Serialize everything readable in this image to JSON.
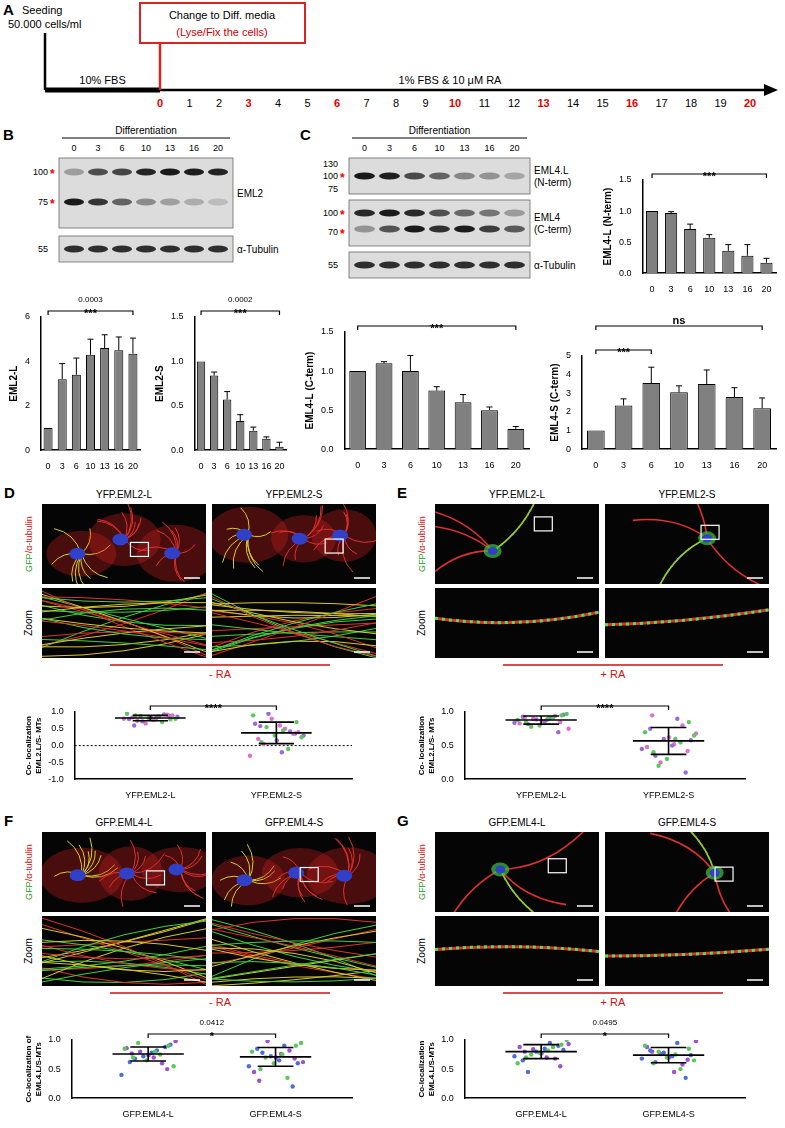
{
  "panels": {
    "A": {
      "letter": "A",
      "seeding": [
        "Seeding",
        "50.000 cells/ml"
      ],
      "box": [
        "Change to Diff. media",
        "(Lyse/Fix the cells)"
      ],
      "phases": [
        "10% FBS",
        "1% FBS & 10 μM RA"
      ],
      "days": [
        0,
        1,
        2,
        3,
        4,
        5,
        6,
        7,
        8,
        9,
        10,
        11,
        12,
        13,
        14,
        15,
        16,
        17,
        18,
        19,
        20
      ],
      "highlight": [
        0,
        3,
        6,
        10,
        13,
        16,
        20
      ]
    },
    "B": {
      "letter": "B",
      "header": "Differentiation",
      "lanes": [
        "0",
        "3",
        "6",
        "10",
        "13",
        "16",
        "20"
      ],
      "blots": [
        {
          "label": [
            "EML2"
          ],
          "markers": [
            {
              "text": "100",
              "mark": "*"
            },
            {
              "text": "75",
              "mark": "*"
            }
          ]
        },
        {
          "label": [
            "α-Tubulin"
          ],
          "markers": [
            {
              "text": "55"
            }
          ]
        }
      ]
    },
    "C": {
      "letter": "C",
      "header": "Differentiation",
      "lanes": [
        "0",
        "3",
        "6",
        "10",
        "13",
        "16",
        "20"
      ],
      "blots": [
        {
          "label": [
            "EML4.L",
            "(N-term)"
          ],
          "markers": [
            {
              "text": "130"
            },
            {
              "text": "100",
              "mark": "*"
            },
            {
              "text": "75"
            }
          ]
        },
        {
          "label": [
            "EML4",
            "(C-term)"
          ],
          "markers": [
            {
              "text": "100",
              "mark": "*"
            },
            {
              "text": "70",
              "mark": "*"
            }
          ]
        },
        {
          "label": [
            "α-Tubulin"
          ],
          "markers": [
            {
              "text": "55"
            }
          ]
        }
      ]
    },
    "D": {
      "letter": "D",
      "labels": [
        "YFP.EML2-L",
        "YFP.EML2-S"
      ],
      "stain": [
        "GFP",
        "/α-tubulin"
      ],
      "zoom": "Zoom",
      "condition": "- RA"
    },
    "E": {
      "letter": "E",
      "labels": [
        "YFP.EML2-L",
        "YFP.EML2-S"
      ],
      "stain": [
        "GFP",
        "/α-tubulin"
      ],
      "zoom": "Zoom",
      "condition": "+ RA"
    },
    "F": {
      "letter": "F",
      "labels": [
        "GFP.EML4-L",
        "GFP.EML4-S"
      ],
      "stain": [
        "GFP",
        "/α-tubulin"
      ],
      "zoom": "Zoom",
      "condition": "- RA"
    },
    "G": {
      "letter": "G",
      "labels": [
        "GFP.EML4-L",
        "GFP.EML4-S"
      ],
      "stain": [
        "GFP",
        "/α-tubulin"
      ],
      "zoom": "Zoom",
      "condition": "+ RA"
    }
  },
  "chart_data": [
    {
      "type": "bar",
      "categories": [
        "0",
        "3",
        "6",
        "10",
        "13",
        "16",
        "20"
      ],
      "values": [
        1,
        3.2,
        3.4,
        4.3,
        4.6,
        4.5,
        4.35
      ],
      "error": [
        0,
        0.7,
        0.75,
        0.7,
        0.6,
        0.6,
        0.7
      ],
      "color": "#808080",
      "ylabel": "EML2-L",
      "ylim": [
        0,
        6
      ],
      "yticks": [
        0,
        2,
        4,
        6
      ],
      "grid": false,
      "annotations": [
        {
          "from": "0",
          "to": "20",
          "text": "***",
          "label": "0.0003"
        }
      ]
    },
    {
      "type": "bar",
      "categories": [
        "0",
        "3",
        "6",
        "10",
        "13",
        "16",
        "20"
      ],
      "values": [
        1,
        0.84,
        0.57,
        0.33,
        0.22,
        0.13,
        0.04
      ],
      "error": [
        0,
        0.04,
        0.09,
        0.07,
        0.04,
        0.02,
        0.05
      ],
      "color": "#808080",
      "ylabel": "EML2-S",
      "ylim": [
        0,
        1.5
      ],
      "yticks": [
        {
          "value": 0,
          "label": "0.0"
        },
        0.5,
        {
          "value": 1,
          "label": "1.0"
        },
        1.5
      ],
      "grid": false,
      "annotations": [
        {
          "from": "0",
          "to": "20",
          "text": "***",
          "label": "0.0002"
        }
      ]
    },
    {
      "type": "bar",
      "categories": [
        "0",
        "3",
        "6",
        "10",
        "13",
        "16",
        "20"
      ],
      "values": [
        1,
        0.97,
        0.71,
        0.57,
        0.36,
        0.28,
        0.17
      ],
      "error": [
        0,
        0.02,
        0.08,
        0.05,
        0.1,
        0.18,
        0.07
      ],
      "color": "#808080",
      "ylabel": "EML4-L (N-term)",
      "ylim": [
        0,
        1.5
      ],
      "yticks": [
        {
          "value": 0,
          "label": "0.0"
        },
        0.5,
        {
          "value": 1,
          "label": "1.0"
        },
        1.5
      ],
      "grid": false,
      "annotations": [
        {
          "from": "0",
          "to": "20",
          "text": "***"
        }
      ]
    },
    {
      "type": "bar",
      "categories": [
        "0",
        "3",
        "6",
        "10",
        "13",
        "16",
        "20"
      ],
      "values": [
        1,
        1.1,
        1.0,
        0.75,
        0.6,
        0.5,
        0.26
      ],
      "error": [
        0,
        0.02,
        0.2,
        0.05,
        0.1,
        0.04,
        0.03
      ],
      "color": "#808080",
      "ylabel": "EML4-L (C-term)",
      "ylim": [
        0,
        1.5
      ],
      "yticks": [
        {
          "value": 0,
          "label": "0.0"
        },
        0.5,
        {
          "value": 1,
          "label": "1.0"
        },
        1.5
      ],
      "grid": false,
      "annotations": [
        {
          "from": "0",
          "to": "20",
          "text": "***"
        }
      ]
    },
    {
      "type": "bar",
      "categories": [
        "0",
        "3",
        "6",
        "10",
        "13",
        "16",
        "20"
      ],
      "values": [
        1,
        2.35,
        3.55,
        3.05,
        3.5,
        2.8,
        2.2
      ],
      "error": [
        0,
        0.35,
        0.85,
        0.35,
        0.75,
        0.5,
        0.55
      ],
      "color": "#808080",
      "ylabel": "EML4-S (C-term)",
      "ylim": [
        0,
        5
      ],
      "yticks": [
        0,
        1,
        2,
        3,
        4,
        5
      ],
      "grid": false,
      "annotations": [
        {
          "from": "0",
          "to": "6",
          "text": "***"
        },
        {
          "from": "0",
          "to": "20",
          "text": "ns"
        }
      ]
    },
    {
      "type": "scatter",
      "categories": [
        "YFP.EML2-L",
        "YFP.EML2-S"
      ],
      "ylabel": "Co- localization EML2.L/S- MTs",
      "ylim": [
        -1,
        1
      ],
      "yticks": [
        {
          "value": -1,
          "label": "-1.0"
        },
        -0.5,
        {
          "value": 0,
          "label": "0.0"
        },
        0.5,
        {
          "value": 1,
          "label": "1.0"
        }
      ],
      "grid": false,
      "series": [
        {
          "color": "#5cc85c",
          "values": [
            [
              0.85,
              0.9,
              0.78,
              0.82,
              0.95,
              0.7,
              0.88,
              0.8
            ],
            [
              0.45,
              0.1,
              0.7,
              0.3,
              0.9,
              -0.1,
              0.55,
              0.25
            ]
          ]
        },
        {
          "color": "#e070d0",
          "values": [
            [
              0.76,
              0.84,
              0.92,
              0.66,
              0.8,
              0.87,
              0.74,
              0.9
            ],
            [
              0.6,
              0.2,
              0.35,
              0.8,
              -0.3,
              0.5,
              0.05,
              0.4
            ]
          ]
        },
        {
          "color": "#9a6ad8",
          "values": [
            [
              0.83,
              0.79,
              0.93,
              0.72,
              0.86,
              0.81,
              0.6,
              0.89
            ],
            [
              0.15,
              0.65,
              0.42,
              0.95,
              0.3,
              -0.2,
              0.58,
              0.36
            ]
          ]
        }
      ],
      "mean": [
        0.82,
        0.38
      ],
      "sd": [
        0.08,
        0.32
      ],
      "annotations": [
        {
          "from": "YFP.EML2-L",
          "to": "YFP.EML2-S",
          "text": "****"
        },
        {
          "y": 0,
          "line_style": "dotted"
        }
      ]
    },
    {
      "type": "scatter",
      "categories": [
        "YFP.EML2-L",
        "YFP.EML2-S"
      ],
      "ylabel": "Co- localization EML2.L/S- MTs",
      "ylim": [
        0,
        1
      ],
      "yticks": [
        {
          "value": 0,
          "label": "0.0"
        },
        0.5,
        {
          "value": 1,
          "label": "1.0"
        }
      ],
      "grid": false,
      "series": [
        {
          "color": "#5cc85c",
          "values": [
            [
              0.9,
              0.85,
              0.95,
              0.8,
              0.88,
              0.92,
              0.78,
              0.97
            ],
            [
              0.6,
              0.4,
              0.85,
              0.3,
              0.7,
              0.55,
              0.2,
              0.65
            ]
          ]
        },
        {
          "color": "#9a6ad8",
          "values": [
            [
              0.86,
              0.93,
              0.7,
              0.89,
              0.84,
              0.91,
              0.82,
              0.96
            ],
            [
              0.5,
              0.75,
              0.1,
              0.6,
              0.45,
              0.9,
              0.35,
              0.58
            ]
          ]
        },
        {
          "color": "#e070d0",
          "values": [
            [
              0.87,
              0.83,
              0.94,
              0.9,
              0.75,
              0.88,
              0.92,
              0.85
            ],
            [
              0.62,
              0.48,
              0.8,
              0.25,
              0.68,
              0.52,
              0.95,
              0.42
            ]
          ]
        }
      ],
      "mean": [
        0.88,
        0.57
      ],
      "sd": [
        0.06,
        0.2
      ],
      "annotations": [
        {
          "from": "YFP.EML2-L",
          "to": "YFP.EML2-S",
          "text": "****"
        }
      ]
    },
    {
      "type": "scatter",
      "categories": [
        "GFP.EML4-L",
        "GFP.EML4-S"
      ],
      "ylabel": "Co-localization of EML4.L/S-MTs",
      "ylim": [
        0,
        1
      ],
      "yticks": [
        {
          "value": 0,
          "label": "0.0"
        },
        0.5,
        {
          "value": 1,
          "label": "1.0"
        }
      ],
      "grid": false,
      "series": [
        {
          "color": "#5cc85c",
          "values": [
            [
              0.8,
              0.7,
              0.9,
              0.65,
              0.85,
              0.75,
              0.95,
              0.55
            ],
            [
              0.75,
              0.5,
              0.9,
              0.6,
              0.8,
              0.35,
              0.7,
              0.95
            ]
          ]
        },
        {
          "color": "#4a6ee0",
          "values": [
            [
              0.78,
              0.62,
              0.88,
              0.72,
              0.4,
              0.82,
              0.68,
              0.92
            ],
            [
              0.65,
              0.85,
              0.2,
              0.72,
              0.55,
              0.9,
              0.78,
              0.6
            ]
          ]
        },
        {
          "color": "#a050d0",
          "values": [
            [
              0.74,
              0.86,
              0.6,
              0.8,
              0.98,
              0.7,
              0.77,
              0.5
            ],
            [
              0.7,
              0.45,
              0.82,
              0.98,
              0.62,
              0.76,
              0.3,
              0.68
            ]
          ]
        }
      ],
      "mean": [
        0.76,
        0.71
      ],
      "sd": [
        0.12,
        0.16
      ],
      "annotations": [
        {
          "from": "GFP.EML4-L",
          "to": "GFP.EML4-S",
          "text": "*",
          "label": "0.0412"
        }
      ]
    },
    {
      "type": "scatter",
      "categories": [
        "GFP.EML4-L",
        "GFP.EML4-S"
      ],
      "ylabel": "Co-localization EML4.L/S-MTs",
      "ylim": [
        0,
        1
      ],
      "yticks": [
        {
          "value": 0,
          "label": "0.0"
        },
        0.5,
        {
          "value": 1,
          "label": "1.0"
        }
      ],
      "grid": false,
      "series": [
        {
          "color": "#5cc85c",
          "values": [
            [
              0.82,
              0.7,
              0.92,
              0.78,
              0.6,
              0.88,
              0.75,
              1.0
            ],
            [
              0.75,
              0.6,
              0.85,
              0.7,
              0.9,
              0.5,
              0.8,
              0.65
            ]
          ]
        },
        {
          "color": "#4a6ee0",
          "values": [
            [
              0.85,
              0.65,
              0.9,
              0.8,
              0.72,
              0.95,
              0.45,
              0.83
            ],
            [
              0.72,
              0.82,
              0.35,
              0.78,
              0.68,
              0.95,
              0.62,
              0.74
            ]
          ]
        },
        {
          "color": "#a050d0",
          "values": [
            [
              0.77,
              0.88,
              0.68,
              0.84,
              0.93,
              0.7,
              0.8,
              0.55
            ],
            [
              0.7,
              0.88,
              0.58,
              0.76,
              0.98,
              0.45,
              0.8,
              0.66
            ]
          ]
        }
      ],
      "mean": [
        0.8,
        0.74
      ],
      "sd": [
        0.12,
        0.13
      ],
      "annotations": [
        {
          "from": "GFP.EML4-L",
          "to": "GFP.EML4-S",
          "text": "*",
          "label": "0.0495"
        }
      ]
    }
  ]
}
